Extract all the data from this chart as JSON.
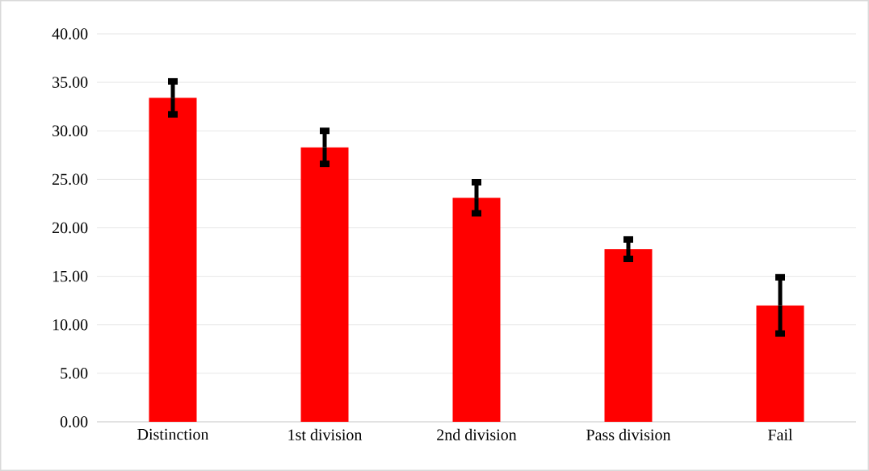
{
  "chart_data": {
    "type": "bar",
    "categories": [
      "Distinction",
      "1st division",
      "2nd division",
      "Pass division",
      "Fail"
    ],
    "values": [
      33.4,
      28.3,
      23.1,
      17.8,
      12.0
    ],
    "errors": [
      1.7,
      1.7,
      1.6,
      1.0,
      2.9
    ],
    "color": "#ff0000",
    "ylim": [
      0,
      40
    ],
    "yticks": [
      {
        "value": 0,
        "label": "0.00"
      },
      {
        "value": 5,
        "label": "5.00"
      },
      {
        "value": 10,
        "label": "10.00"
      },
      {
        "value": 15,
        "label": "15.00"
      },
      {
        "value": 20,
        "label": "20.00"
      },
      {
        "value": 25,
        "label": "25.00"
      },
      {
        "value": 30,
        "label": "30.00"
      },
      {
        "value": 35,
        "label": "35.00"
      },
      {
        "value": 40,
        "label": "40.00"
      }
    ],
    "grid": "y"
  }
}
